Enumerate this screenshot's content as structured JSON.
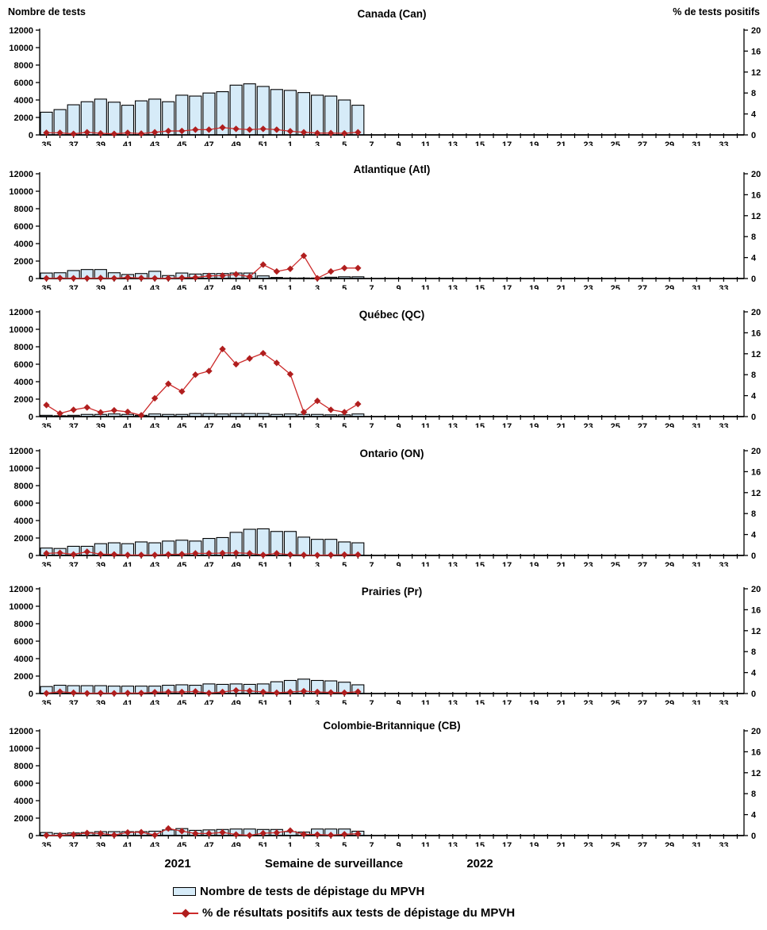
{
  "header": {
    "left_axis_title": "Nombre de tests",
    "right_axis_title": "% de tests positifs"
  },
  "footer": {
    "year_left": "2021",
    "x_axis_label": "Semaine de surveillance",
    "year_right": "2022"
  },
  "legend": {
    "items": [
      {
        "swatch": "bar",
        "label": "Nombre de tests de dépistage du MPVH"
      },
      {
        "swatch": "line-diamond",
        "label": "% de résultats positifs aux tests de dépistage du MPVH"
      }
    ]
  },
  "colors": {
    "bar_fill": "#D6EBF8",
    "bar_stroke": "#000000",
    "line": "#CC2A2A",
    "marker": "#B01E1E",
    "axis": "#000000"
  },
  "axes": {
    "left": {
      "title": "Nombre de tests",
      "max": 12000,
      "ticks": [
        0,
        2000,
        4000,
        6000,
        8000,
        10000,
        12000
      ]
    },
    "right": {
      "title": "% de tests positifs",
      "max": 20,
      "ticks": [
        0,
        4,
        8,
        12,
        16,
        20
      ]
    },
    "x": {
      "label": "Semaine de surveillance",
      "label_every_n": 2,
      "categories": [
        "35",
        "36",
        "37",
        "38",
        "39",
        "40",
        "41",
        "42",
        "43",
        "44",
        "45",
        "46",
        "47",
        "48",
        "49",
        "50",
        "51",
        "52",
        "1",
        "2",
        "3",
        "4",
        "5",
        "6",
        "7",
        "8",
        "9",
        "10",
        "11",
        "12",
        "13",
        "14",
        "15",
        "16",
        "17",
        "18",
        "19",
        "20",
        "21",
        "22",
        "23",
        "24",
        "25",
        "26",
        "27",
        "28",
        "29",
        "30",
        "31",
        "32",
        "33",
        "34"
      ]
    }
  },
  "chart_data": [
    {
      "type": "bar",
      "title": "Canada (Can)",
      "series": [
        {
          "name": "Nombre de tests de dépistage du MPVH",
          "type": "bar",
          "axis": "left",
          "values": [
            2600,
            2900,
            3450,
            3800,
            4100,
            3750,
            3400,
            3900,
            4100,
            3800,
            4550,
            4450,
            4800,
            4950,
            5700,
            5850,
            5550,
            5200,
            5100,
            4850,
            4550,
            4450,
            4000,
            3400
          ]
        },
        {
          "name": "% de résultats positifs aux tests de dépistage du MPVH",
          "type": "line",
          "axis": "right",
          "values": [
            0.4,
            0.4,
            0.2,
            0.5,
            0.3,
            0.2,
            0.4,
            0.25,
            0.5,
            0.75,
            0.75,
            1.0,
            1.0,
            1.4,
            1.15,
            1.0,
            1.15,
            1.0,
            0.7,
            0.5,
            0.35,
            0.35,
            0.3,
            0.5
          ]
        }
      ]
    },
    {
      "type": "bar",
      "title": "Atlantique (Atl)",
      "series": [
        {
          "name": "Nombre de tests de dépistage du MPVH",
          "type": "bar",
          "axis": "left",
          "values": [
            630,
            660,
            915,
            1030,
            1030,
            660,
            460,
            570,
            830,
            340,
            630,
            515,
            570,
            570,
            630,
            630,
            300,
            120,
            60,
            60,
            60,
            150,
            200,
            200
          ]
        },
        {
          "name": "% de résultats positifs aux tests de dépistage du MPVH",
          "type": "line",
          "axis": "right",
          "values": [
            0.05,
            0.1,
            0.05,
            0.05,
            0.1,
            0.05,
            0.2,
            0.1,
            0.05,
            0.05,
            0.15,
            0.2,
            0.5,
            0.55,
            0.8,
            0.35,
            2.65,
            1.35,
            1.85,
            4.35,
            0.05,
            1.35,
            2.0,
            2.0
          ]
        }
      ]
    },
    {
      "type": "bar",
      "title": "Québec (QC)",
      "series": [
        {
          "name": "Nombre de tests de dépistage du MPVH",
          "type": "bar",
          "axis": "left",
          "values": [
            150,
            100,
            150,
            250,
            250,
            300,
            250,
            150,
            300,
            250,
            250,
            350,
            350,
            300,
            350,
            350,
            350,
            250,
            300,
            250,
            250,
            200,
            200,
            300
          ]
        },
        {
          "name": "% de résultats positifs aux tests de dépistage du MPVH",
          "type": "line",
          "axis": "right",
          "values": [
            2.2,
            0.6,
            1.3,
            1.75,
            0.8,
            1.2,
            0.9,
            0.25,
            3.5,
            6.25,
            4.8,
            8.0,
            8.7,
            12.9,
            10.0,
            11.1,
            12.1,
            10.25,
            8.1,
            0.85,
            3.0,
            1.3,
            0.85,
            2.4
          ]
        }
      ]
    },
    {
      "type": "bar",
      "title": "Ontario (ON)",
      "series": [
        {
          "name": "Nombre de tests de dépistage du MPVH",
          "type": "bar",
          "axis": "left",
          "values": [
            850,
            800,
            1050,
            1050,
            1350,
            1450,
            1350,
            1550,
            1450,
            1650,
            1750,
            1650,
            1950,
            2050,
            2650,
            3000,
            3050,
            2750,
            2750,
            2100,
            1850,
            1850,
            1550,
            1450
          ]
        },
        {
          "name": "% de résultats positifs aux tests de dépistage du MPVH",
          "type": "line",
          "axis": "right",
          "values": [
            0.4,
            0.5,
            0.2,
            0.7,
            0.25,
            0.2,
            0.1,
            0.1,
            0.1,
            0.2,
            0.25,
            0.4,
            0.4,
            0.45,
            0.5,
            0.4,
            0.1,
            0.4,
            0.15,
            0.1,
            0.05,
            0.1,
            0.15,
            0.15
          ]
        }
      ]
    },
    {
      "type": "bar",
      "title": "Prairies (Pr)",
      "series": [
        {
          "name": "Nombre de tests de dépistage du MPVH",
          "type": "bar",
          "axis": "left",
          "values": [
            800,
            950,
            900,
            900,
            900,
            850,
            850,
            850,
            850,
            950,
            1000,
            950,
            1100,
            1050,
            1100,
            1050,
            1100,
            1350,
            1500,
            1650,
            1500,
            1450,
            1300,
            1000
          ]
        },
        {
          "name": "% de résultats positifs aux tests de dépistage du MPVH",
          "type": "line",
          "axis": "right",
          "values": [
            0.05,
            0.35,
            0.15,
            0.05,
            0.1,
            0.05,
            0.1,
            0.1,
            0.25,
            0.3,
            0.3,
            0.4,
            0.1,
            0.3,
            0.6,
            0.5,
            0.3,
            0.15,
            0.3,
            0.45,
            0.3,
            0.2,
            0.15,
            0.35
          ]
        }
      ]
    },
    {
      "type": "bar",
      "title": "Colombie-Britannique (CB)",
      "series": [
        {
          "name": "Nombre de tests de dépistage du MPVH",
          "type": "bar",
          "axis": "left",
          "values": [
            350,
            250,
            300,
            350,
            450,
            450,
            450,
            450,
            500,
            650,
            800,
            600,
            650,
            700,
            750,
            750,
            700,
            700,
            450,
            400,
            750,
            750,
            750,
            500
          ]
        },
        {
          "name": "% de résultats positifs aux tests de dépistage du MPVH",
          "type": "line",
          "axis": "right",
          "values": [
            0.05,
            0.05,
            0.2,
            0.5,
            0.4,
            0.1,
            0.6,
            0.65,
            0.1,
            1.35,
            0.85,
            0.4,
            0.4,
            0.6,
            0.2,
            0.05,
            0.45,
            0.55,
            0.95,
            0.25,
            0.2,
            0.1,
            0.25,
            0.35
          ]
        }
      ]
    }
  ]
}
